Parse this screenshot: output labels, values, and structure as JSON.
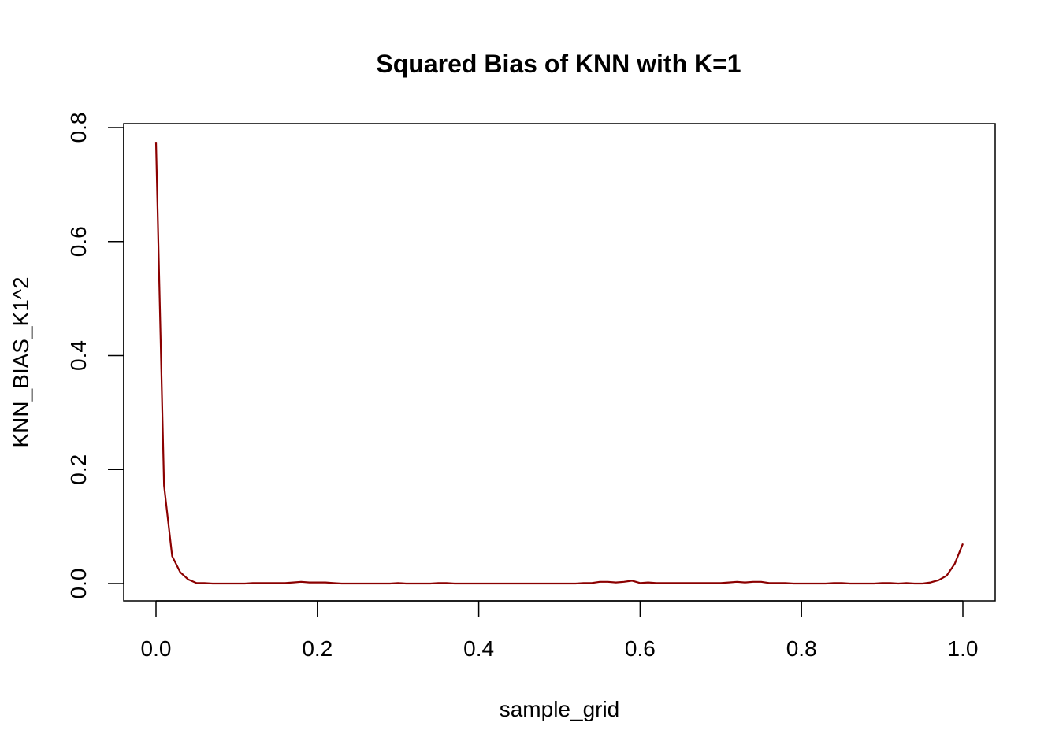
{
  "chart_data": {
    "type": "line",
    "title": "Squared Bias of KNN with K=1",
    "xlabel": "sample_grid",
    "ylabel": "KNN_BIAS_K1^2",
    "xlim": [
      0,
      1
    ],
    "ylim": [
      0,
      0.8
    ],
    "xticks": [
      "0.0",
      "0.2",
      "0.4",
      "0.6",
      "0.8",
      "1.0"
    ],
    "yticks": [
      "0.0",
      "0.2",
      "0.4",
      "0.6",
      "0.8"
    ],
    "grid": false,
    "legend": "none",
    "series": [
      {
        "color": "#8b0000",
        "x": [
          0.0,
          0.01,
          0.02,
          0.03,
          0.04,
          0.05,
          0.06,
          0.07,
          0.08,
          0.09,
          0.1,
          0.11,
          0.12,
          0.13,
          0.14,
          0.15,
          0.16,
          0.17,
          0.18,
          0.19,
          0.2,
          0.21,
          0.22,
          0.23,
          0.24,
          0.25,
          0.26,
          0.27,
          0.28,
          0.29,
          0.3,
          0.31,
          0.32,
          0.33,
          0.34,
          0.35,
          0.36,
          0.37,
          0.38,
          0.39,
          0.4,
          0.41,
          0.42,
          0.43,
          0.44,
          0.45,
          0.46,
          0.47,
          0.48,
          0.49,
          0.5,
          0.51,
          0.52,
          0.53,
          0.54,
          0.55,
          0.56,
          0.57,
          0.58,
          0.59,
          0.6,
          0.61,
          0.62,
          0.63,
          0.64,
          0.65,
          0.66,
          0.67,
          0.68,
          0.69,
          0.7,
          0.71,
          0.72,
          0.73,
          0.74,
          0.75,
          0.76,
          0.77,
          0.78,
          0.79,
          0.8,
          0.81,
          0.82,
          0.83,
          0.84,
          0.85,
          0.86,
          0.87,
          0.88,
          0.89,
          0.9,
          0.91,
          0.92,
          0.93,
          0.94,
          0.95,
          0.96,
          0.97,
          0.98,
          0.99,
          1.0
        ],
        "values": [
          0.775,
          0.172,
          0.048,
          0.02,
          0.007,
          0.001,
          0.001,
          0.0,
          0.0,
          0.0,
          0.0,
          0.0,
          0.001,
          0.001,
          0.001,
          0.001,
          0.001,
          0.002,
          0.003,
          0.002,
          0.002,
          0.002,
          0.001,
          0.0,
          0.0,
          0.0,
          0.0,
          0.0,
          0.0,
          0.0,
          0.001,
          0.0,
          0.0,
          0.0,
          0.0,
          0.001,
          0.001,
          0.0,
          0.0,
          0.0,
          0.0,
          0.0,
          0.0,
          0.0,
          0.0,
          0.0,
          0.0,
          0.0,
          0.0,
          0.0,
          0.0,
          0.0,
          0.0,
          0.001,
          0.001,
          0.003,
          0.003,
          0.002,
          0.003,
          0.005,
          0.001,
          0.002,
          0.001,
          0.001,
          0.001,
          0.001,
          0.001,
          0.001,
          0.001,
          0.001,
          0.001,
          0.002,
          0.003,
          0.002,
          0.003,
          0.003,
          0.001,
          0.001,
          0.001,
          0.0,
          0.0,
          0.0,
          0.0,
          0.0,
          0.001,
          0.001,
          0.0,
          0.0,
          0.0,
          0.0,
          0.001,
          0.001,
          0.0,
          0.001,
          0.0,
          0.0,
          0.002,
          0.006,
          0.014,
          0.035,
          0.07
        ]
      }
    ]
  }
}
